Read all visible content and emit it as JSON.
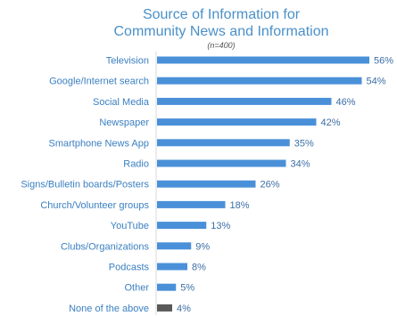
{
  "chart_data": {
    "type": "bar",
    "orientation": "horizontal",
    "title_lines": [
      "Source of Information for",
      "Community News and Information"
    ],
    "subtitle": "(n=400)",
    "categories": [
      "Television",
      "Google/Internet search",
      "Social Media",
      "Newspaper",
      "Smartphone News App",
      "Radio",
      "Signs/Bulletin boards/Posters",
      "Church/Volunteer groups",
      "YouTube",
      "Clubs/Organizations",
      "Podcasts",
      "Other",
      "None of the above"
    ],
    "values": [
      56,
      54,
      46,
      42,
      35,
      34,
      26,
      18,
      13,
      9,
      8,
      5,
      4
    ],
    "value_labels": [
      "56%",
      "54%",
      "46%",
      "42%",
      "35%",
      "34%",
      "26%",
      "18%",
      "13%",
      "9%",
      "8%",
      "5%",
      "4%"
    ],
    "xlim": [
      0,
      56
    ],
    "grid": false,
    "colors": {
      "bar": "#4a90d9",
      "bar_highlight": "#595959",
      "highlight_index": 12
    }
  }
}
